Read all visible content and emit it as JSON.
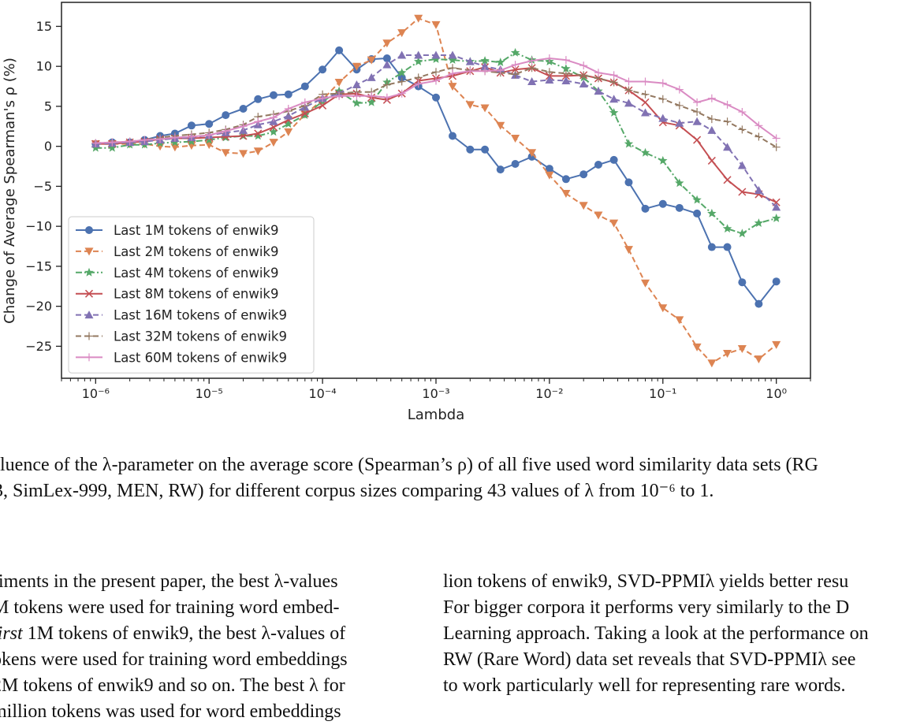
{
  "chart_data": {
    "type": "line",
    "xscale": "log",
    "xlabel": "Lambda",
    "ylabel": "Change of Average Spearman's ρ (%)",
    "xlim": [
      5e-07,
      2
    ],
    "ylim": [
      -29,
      18
    ],
    "x_ticks": [
      "10⁻⁶",
      "10⁻⁵",
      "10⁻⁴",
      "10⁻³",
      "10⁻²",
      "10⁻¹",
      "10⁰"
    ],
    "y_ticks": [
      "15",
      "10",
      "5",
      "0",
      "−5",
      "−10",
      "−15",
      "−20",
      "−25"
    ],
    "legend_position": "lower-left",
    "grid": false,
    "x": [
      1e-06,
      1.4e-06,
      2e-06,
      2.7e-06,
      3.7e-06,
      5e-06,
      7e-06,
      1e-05,
      1.4e-05,
      2e-05,
      2.7e-05,
      3.7e-05,
      5e-05,
      7e-05,
      0.0001,
      0.00014,
      0.0002,
      0.00027,
      0.00037,
      0.0005,
      0.0007,
      0.001,
      0.0014,
      0.002,
      0.0027,
      0.0037,
      0.005,
      0.007,
      0.01,
      0.014,
      0.02,
      0.027,
      0.037,
      0.05,
      0.07,
      0.1,
      0.14,
      0.2,
      0.27,
      0.37,
      0.5,
      0.7,
      1
    ],
    "series": [
      {
        "name": "Last 1M tokens of enwik9",
        "color": "#4c72b0",
        "marker": "circle",
        "dash": "solid",
        "values": [
          0.3,
          0.5,
          0.5,
          0.8,
          1.3,
          1.6,
          2.6,
          2.8,
          3.9,
          4.7,
          5.9,
          6.4,
          6.5,
          7.5,
          9.6,
          12,
          9.6,
          10.9,
          11,
          8.6,
          7.5,
          6.1,
          1.3,
          -0.4,
          -0.4,
          -2.9,
          -2.2,
          -1.3,
          -2.8,
          -4.1,
          -3.5,
          -2.3,
          -1.7,
          -4.5,
          -7.8,
          -7.2,
          -7.7,
          -8.4,
          -12.6,
          -12.6,
          -17,
          -19.7,
          -16.9
        ]
      },
      {
        "name": "Last 2M tokens of enwik9",
        "color": "#dd8452",
        "marker": "triangle-down",
        "dash": "dashed",
        "values": [
          0.3,
          0.3,
          0.3,
          0.3,
          0,
          -0.1,
          0.1,
          0.2,
          -0.8,
          -0.9,
          -0.6,
          0.5,
          1.8,
          4,
          5.8,
          8,
          10,
          10.8,
          12.9,
          14.2,
          16,
          15.2,
          7.5,
          5.2,
          4.8,
          2.6,
          1,
          -0.8,
          -3.6,
          -5.9,
          -7.4,
          -8.6,
          -9.6,
          -12.9,
          -17.1,
          -20.2,
          -21.7,
          -25.1,
          -27.1,
          -25.9,
          -25.3,
          -26.6,
          -24.8
        ]
      },
      {
        "name": "Last 4M tokens of enwik9",
        "color": "#55a868",
        "marker": "star",
        "dash": "dashdot",
        "values": [
          -0.2,
          -0.2,
          0.2,
          0.2,
          0.4,
          0.5,
          0.6,
          0.8,
          1.1,
          1.3,
          1.3,
          1.8,
          2.8,
          3.9,
          5.6,
          6.9,
          5.4,
          5.5,
          8,
          9.2,
          10.6,
          10.9,
          10.8,
          10.6,
          10.7,
          10.5,
          11.7,
          10.8,
          10.6,
          9.7,
          8.6,
          6.9,
          4.2,
          0.3,
          -0.8,
          -1.8,
          -4.6,
          -6.7,
          -8.4,
          -10.3,
          -10.9,
          -9.6,
          -9
        ]
      },
      {
        "name": "Last 8M tokens of enwik9",
        "color": "#c44e52",
        "marker": "x",
        "dash": "solid",
        "values": [
          0.3,
          0.3,
          0.5,
          0.6,
          0.9,
          1,
          1,
          1.1,
          1.2,
          1.3,
          1.6,
          2.4,
          3.3,
          4.1,
          5.1,
          6.5,
          6.6,
          6.1,
          5.8,
          6.6,
          8.2,
          8.5,
          8.8,
          9.4,
          9.9,
          9.2,
          9.6,
          9.8,
          8.8,
          8.8,
          8.9,
          8.5,
          8,
          7,
          5.5,
          3,
          2.6,
          0.8,
          -1.8,
          -4.2,
          -5.7,
          -6,
          -7
        ]
      },
      {
        "name": "Last 16M tokens of enwik9",
        "color": "#8172b3",
        "marker": "triangle-up",
        "dash": "dashed",
        "values": [
          0.3,
          0.4,
          0.5,
          0.6,
          0.8,
          1,
          1.1,
          1.4,
          1.7,
          2,
          2.7,
          3.1,
          3.8,
          4.9,
          6,
          6.6,
          7.7,
          8.6,
          10.2,
          11.4,
          11.4,
          11.4,
          11.4,
          10.6,
          10,
          9.6,
          8.9,
          8.1,
          8.3,
          8.2,
          7.8,
          6.9,
          5.9,
          5.4,
          4.2,
          3.5,
          2.9,
          3.1,
          2,
          -0.1,
          -2.4,
          -5.5,
          -7.6
        ]
      },
      {
        "name": "Last 32M tokens of enwik9",
        "color": "#937860",
        "marker": "plus-thin",
        "dash": "dashed",
        "values": [
          0.4,
          0.5,
          0.6,
          0.8,
          1.1,
          1.3,
          1.5,
          1.7,
          2.1,
          2.7,
          3.7,
          4,
          4.4,
          5.1,
          6.5,
          6.6,
          6.8,
          6.8,
          7.7,
          8.1,
          8.6,
          9.3,
          9.8,
          9.5,
          9.4,
          9.2,
          9,
          9.8,
          9.3,
          9.1,
          8.9,
          8.5,
          8,
          7,
          6.5,
          5.9,
          5.1,
          4.3,
          3.4,
          3.1,
          2.1,
          1.2,
          -0.1
        ]
      },
      {
        "name": "Last 60M tokens of enwik9",
        "color": "#da8bc3",
        "marker": "plus-thin",
        "dash": "solid",
        "values": [
          0.4,
          0.5,
          0.6,
          0.8,
          0.9,
          1.1,
          1.2,
          1.4,
          1.9,
          2.5,
          3.1,
          3.6,
          4.7,
          5.5,
          6,
          6.3,
          6.3,
          6.3,
          6.1,
          6.6,
          7.8,
          8.2,
          9.1,
          9.4,
          9.4,
          9.5,
          10.2,
          10.7,
          11,
          10.8,
          10.1,
          9.2,
          8.9,
          8.1,
          8.1,
          7.9,
          7.1,
          5.5,
          6,
          5.2,
          4.3,
          2.6,
          1
        ]
      }
    ]
  },
  "caption": {
    "line1": "fluence of the λ-parameter on the average score (Spearman’s ρ) of all five used word similarity data sets (RG",
    "line2": "3, SimLex-999, MEN, RW) for different corpus sizes comparing 43 values of λ from 10⁻⁶ to 1."
  },
  "body_left": {
    "line1": "riments in the present paper, the best λ-values",
    "line2": "M tokens were used for training word embed-",
    "line3_italic": "first",
    "line3_rest": " 1M tokens of enwik9, the best λ-values of",
    "line4": "okens were used for training word embeddings",
    "line5": "2M tokens of enwik9 and so on. The best λ for",
    "line6": "million tokens was used for word embeddings"
  },
  "body_right": {
    "line1": "lion tokens of enwik9, SVD-PPMIλ yields better resu",
    "line2": "For bigger corpora it performs very similarly to the D",
    "line3": "Learning approach. Taking a look at the performance on",
    "line4": "RW (Rare Word) data set reveals that SVD-PPMIλ see",
    "line5": "to work particularly well for representing rare words."
  }
}
